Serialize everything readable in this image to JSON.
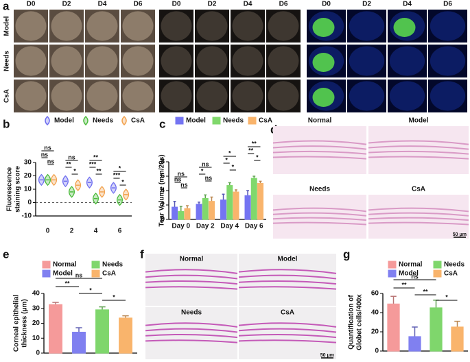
{
  "panel_labels": [
    "a",
    "b",
    "c",
    "d",
    "e",
    "f",
    "g"
  ],
  "panel_a": {
    "columns": [
      "D0",
      "D2",
      "D4",
      "D6",
      "D0",
      "D2",
      "D4",
      "D6",
      "D0",
      "D2",
      "D4",
      "D6"
    ],
    "rows": [
      "Model",
      "Needs",
      "CsA"
    ]
  },
  "panel_d": {
    "titles": [
      "Normal",
      "Model",
      "Needs",
      "CsA"
    ],
    "scale_bar": "50 μm"
  },
  "panel_f": {
    "titles": [
      "Normal",
      "Model",
      "Needs",
      "CsA"
    ],
    "scale_bar": "50 μm"
  },
  "chart_data": [
    {
      "type": "violin",
      "y_label": [
        "Fluorescence",
        "staining score"
      ],
      "categories": [
        "0",
        "2",
        "4",
        "6"
      ],
      "series": [
        {
          "name": "Model",
          "color": "#6f6ff0",
          "values": [
            17,
            16,
            15,
            11
          ]
        },
        {
          "name": "Needs",
          "color": "#4cbb3c",
          "values": [
            17,
            8,
            3,
            2
          ]
        },
        {
          "name": "CsA",
          "color": "#f2a24e",
          "values": [
            17,
            13,
            8,
            6
          ]
        }
      ],
      "ylim": [
        -10,
        30
      ],
      "yticks": [
        -10,
        0,
        10,
        20,
        30
      ],
      "hline": 0,
      "annotations": [
        "ns",
        "ns",
        "ns",
        "ns",
        "**",
        "*",
        "**",
        "***",
        "**",
        "*",
        "***",
        "*"
      ]
    },
    {
      "type": "bar",
      "y_label": [
        "Tear Volume (mm/20s)"
      ],
      "categories": [
        "Day 0",
        "Day 2",
        "Day 4",
        "Day 6"
      ],
      "series": [
        {
          "name": "Model",
          "color": "#7474f2",
          "values": [
            1.7,
            2.1,
            2.7,
            3.3
          ],
          "errors": [
            0.8,
            0.3,
            0.8,
            0.7
          ]
        },
        {
          "name": "Needs",
          "color": "#80d86c",
          "values": [
            1.1,
            2.9,
            4.7,
            5.7
          ],
          "errors": [
            0.7,
            0.5,
            0.4,
            0.3
          ]
        },
        {
          "name": "CsA",
          "color": "#f9b46c",
          "values": [
            1.5,
            2.5,
            3.8,
            5.0
          ],
          "errors": [
            0.4,
            0.6,
            0.3,
            0.3
          ]
        }
      ],
      "ylim": [
        0,
        8
      ],
      "yticks": [
        0,
        2,
        4,
        6,
        8
      ],
      "annotations": [
        "ns",
        "ns",
        "ns",
        "ns",
        "*",
        "ns",
        "*",
        "*",
        "*",
        "**",
        "**",
        "*"
      ]
    },
    {
      "type": "bar",
      "y_label": [
        "Corneal epithelial",
        "thickness (μm)"
      ],
      "series": [
        {
          "name": "Normal",
          "color": "#f59a9a",
          "values": [
            32.5
          ],
          "errors": [
            1.5
          ]
        },
        {
          "name": "Model",
          "color": "#8080f0",
          "values": [
            14
          ],
          "errors": [
            3
          ]
        },
        {
          "name": "Needs",
          "color": "#7fd66c",
          "values": [
            29
          ],
          "errors": [
            2
          ]
        },
        {
          "name": "CsA",
          "color": "#f9b46c",
          "values": [
            23.5
          ],
          "errors": [
            1.5
          ]
        }
      ],
      "ylim": [
        0,
        40
      ],
      "yticks": [
        0,
        10,
        20,
        30,
        40
      ],
      "annotations": [
        "ns",
        "**",
        "*",
        "*"
      ]
    },
    {
      "type": "bar",
      "y_label": [
        "Quantification of",
        "Globet cells/400x"
      ],
      "series": [
        {
          "name": "Normal",
          "color": "#f59a9a",
          "values": [
            49
          ],
          "errors": [
            8
          ]
        },
        {
          "name": "Model",
          "color": "#8080f0",
          "values": [
            15
          ],
          "errors": [
            10
          ]
        },
        {
          "name": "Needs",
          "color": "#7fd66c",
          "values": [
            45
          ],
          "errors": [
            8
          ]
        },
        {
          "name": "CsA",
          "color": "#f9b46c",
          "values": [
            25
          ],
          "errors": [
            6
          ]
        }
      ],
      "ylim": [
        0,
        60
      ],
      "yticks": [
        0,
        20,
        40,
        60
      ],
      "annotations": [
        "ns",
        "**",
        "**",
        "*"
      ]
    }
  ]
}
